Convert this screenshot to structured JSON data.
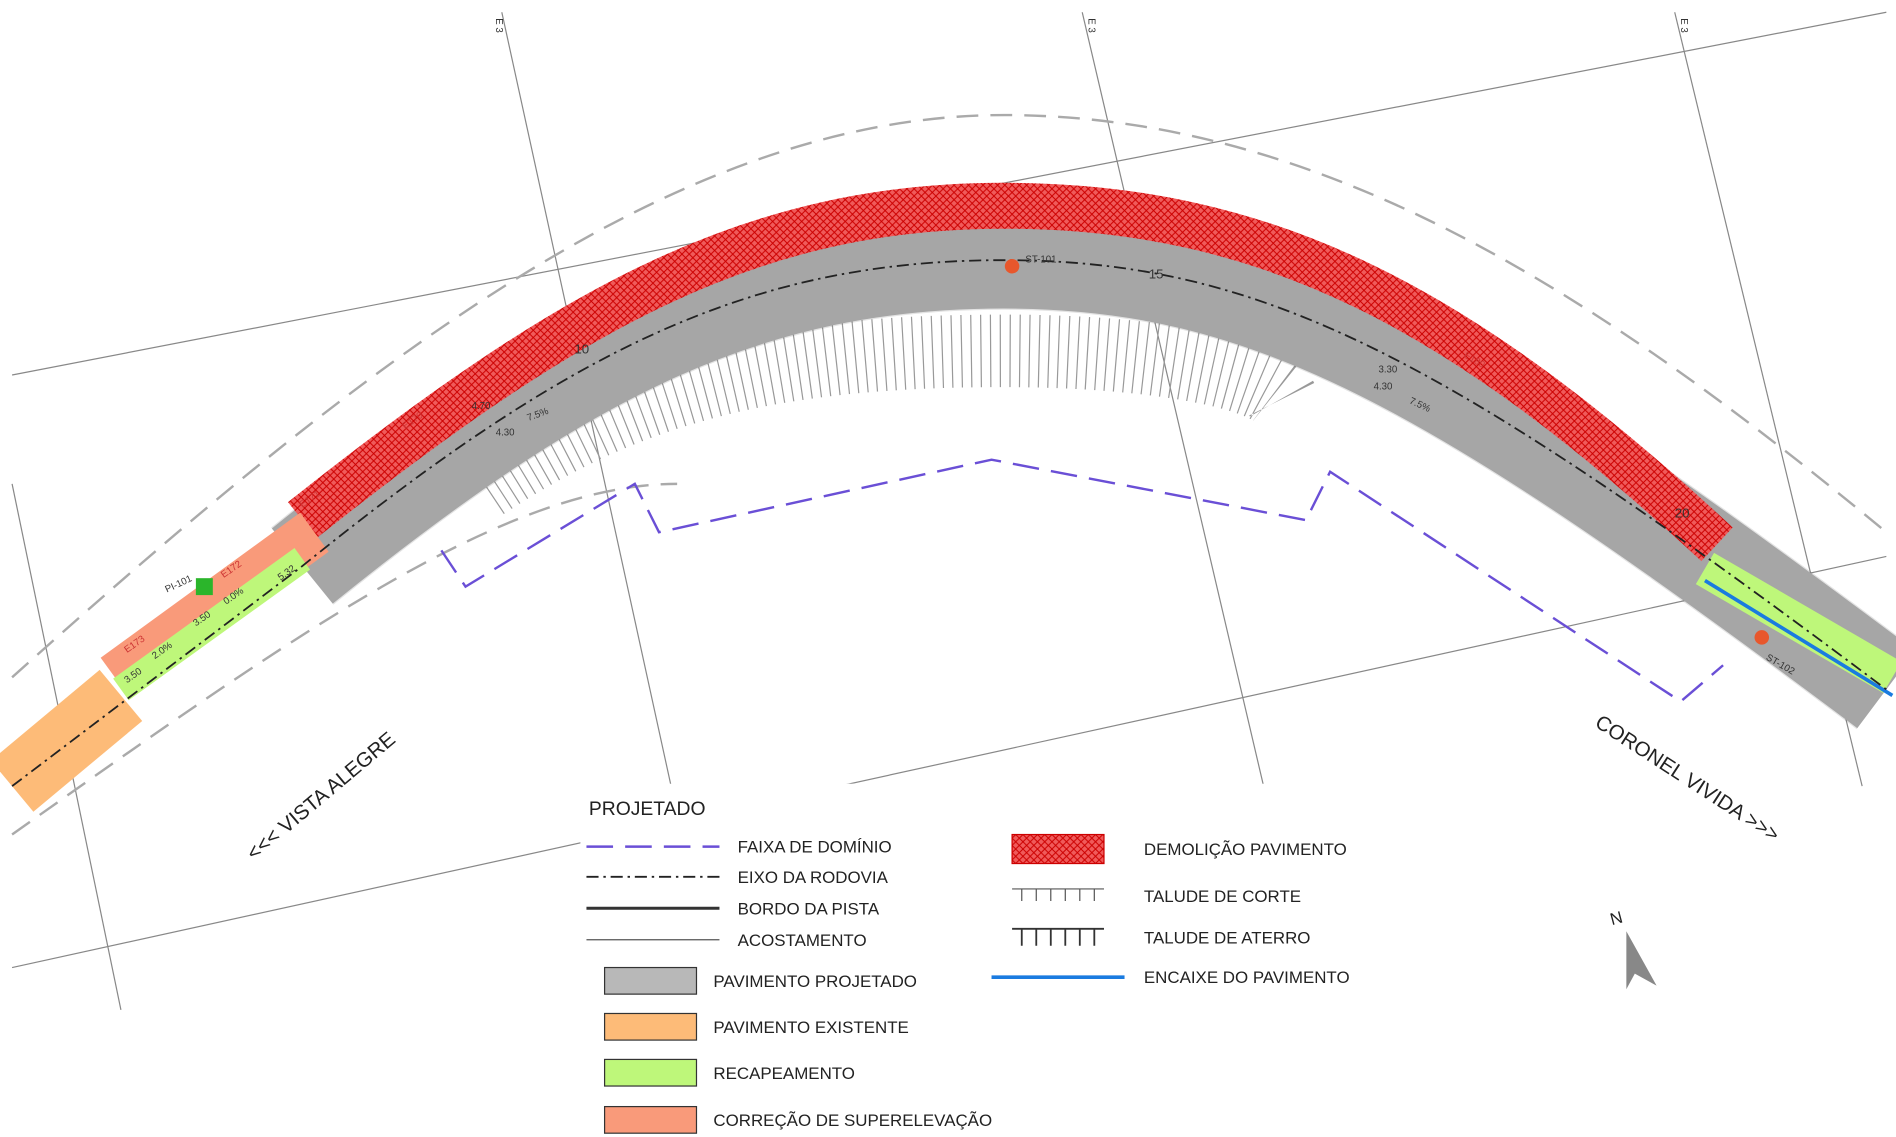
{
  "labels": {
    "left_direction": "<<< VISTA ALEGRE",
    "right_direction": "CORONEL VIVIDA >>>",
    "north": "N",
    "stations": [
      "10",
      "15",
      "20"
    ],
    "points": [
      "ST-101",
      "ST-102",
      "PI-101"
    ],
    "stakes": [
      "E170",
      "E171",
      "E172",
      "E173",
      "E180"
    ],
    "dimensions": [
      "3.50",
      "2.0%",
      "3.50",
      "0.0%",
      "5.32",
      "4.70",
      "4.30",
      "7.5%",
      "3.30",
      "4.30",
      "7.5%"
    ],
    "grid": [
      "E 3",
      "E 3",
      "E 3"
    ]
  },
  "legend": {
    "title": "PROJETADO",
    "lines": [
      "FAIXA DE DOMÍNIO",
      "EIXO DA RODOVIA",
      "BORDO DA PISTA",
      "ACOSTAMENTO"
    ],
    "fills": [
      "PAVIMENTO PROJETADO",
      "PAVIMENTO EXISTENTE",
      "RECAPEAMENTO",
      "CORREÇÃO DE SUPERELEVAÇÃO"
    ],
    "right": [
      "DEMOLIÇÃO PAVIMENTO",
      "TALUDE DE CORTE",
      "TALUDE DE ATERRO",
      "ENCAIXE DO PAVIMENTO"
    ]
  }
}
